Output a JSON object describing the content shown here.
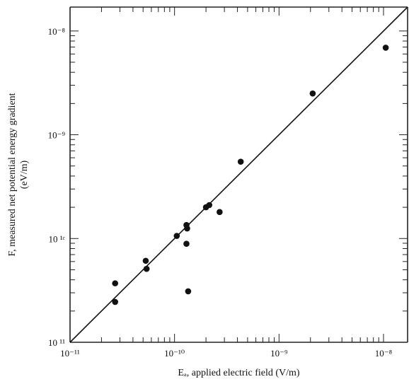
{
  "chart_data": {
    "type": "scatter",
    "title": "",
    "xlabel": "Eₐ, applied electric field (V/m)",
    "ylabel": "F, measured net potential energy gradient",
    "ylabel_unit": "(eV/m)",
    "xscale": "log",
    "yscale": "log",
    "xlim": [
      1e-11,
      1.7e-08
    ],
    "ylim": [
      1e-11,
      1.7e-08
    ],
    "grid": false,
    "x_tick_labels": [
      "10⁻¹¹",
      "10⁻¹⁰",
      "10⁻⁹",
      "10⁻⁸"
    ],
    "x_tick_values": [
      1e-11,
      1e-10,
      1e-09,
      1e-08
    ],
    "y_tick_labels": [
      "10 ¹¹",
      "10 ¹ᶜ",
      "10⁻⁹",
      "10⁻⁸"
    ],
    "y_tick_values": [
      1e-11,
      1e-10,
      1e-09,
      1e-08
    ],
    "series": [
      {
        "points": [
          [
            2.7e-11,
            3.7e-11
          ],
          [
            2.7e-11,
            2.45e-11
          ],
          [
            5.3e-11,
            6.1e-11
          ],
          [
            5.4e-11,
            5.1e-11
          ],
          [
            1.05e-10,
            1.06e-10
          ],
          [
            1.3e-10,
            1.35e-10
          ],
          [
            1.32e-10,
            1.25e-10
          ],
          [
            1.3e-10,
            8.9e-11
          ],
          [
            1.35e-10,
            3.1e-11
          ],
          [
            2e-10,
            2e-10
          ],
          [
            2.15e-10,
            2.1e-10
          ],
          [
            2.7e-10,
            1.8e-10
          ],
          [
            4.3e-10,
            5.5e-10
          ],
          [
            2.1e-09,
            2.5e-09
          ],
          [
            1.05e-08,
            6.9e-09
          ]
        ]
      }
    ],
    "fit_line": {
      "x": [
        1e-11,
        1.7e-08
      ],
      "y": [
        1e-11,
        1.7e-08
      ]
    }
  }
}
